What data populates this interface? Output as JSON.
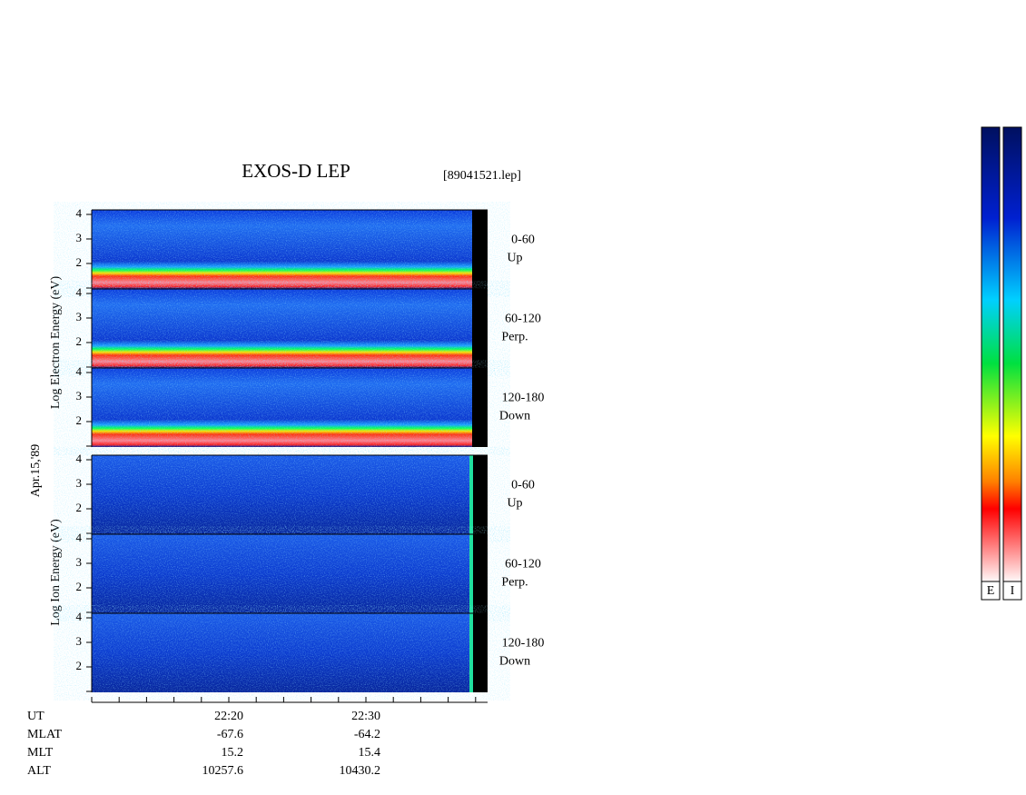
{
  "title": "EXOS-D LEP",
  "file": "[89041521.lep]",
  "date_label": "Apr.15,'89",
  "electron_axis_label": "Log Electron Energy (eV)",
  "ion_axis_label": "Log Ion Energy (eV)",
  "yticks": [
    4,
    3,
    2
  ],
  "panels": [
    {
      "pitch": "0-60",
      "direction": "Up"
    },
    {
      "pitch": "60-120",
      "direction": "Perp."
    },
    {
      "pitch": "120-180",
      "direction": "Down"
    },
    {
      "pitch": "0-60",
      "direction": "Up"
    },
    {
      "pitch": "60-120",
      "direction": "Perp."
    },
    {
      "pitch": "120-180",
      "direction": "Down"
    }
  ],
  "x_axis": {
    "rows": [
      {
        "name": "UT",
        "values": [
          "22:20",
          "22:30"
        ]
      },
      {
        "name": "MLAT",
        "values": [
          "-67.6",
          "-64.2"
        ]
      },
      {
        "name": "MLT",
        "values": [
          "15.2",
          "15.4"
        ]
      },
      {
        "name": "ALT",
        "values": [
          "10257.6",
          "10430.2"
        ]
      }
    ]
  },
  "colorbars": [
    "E",
    "I"
  ]
}
